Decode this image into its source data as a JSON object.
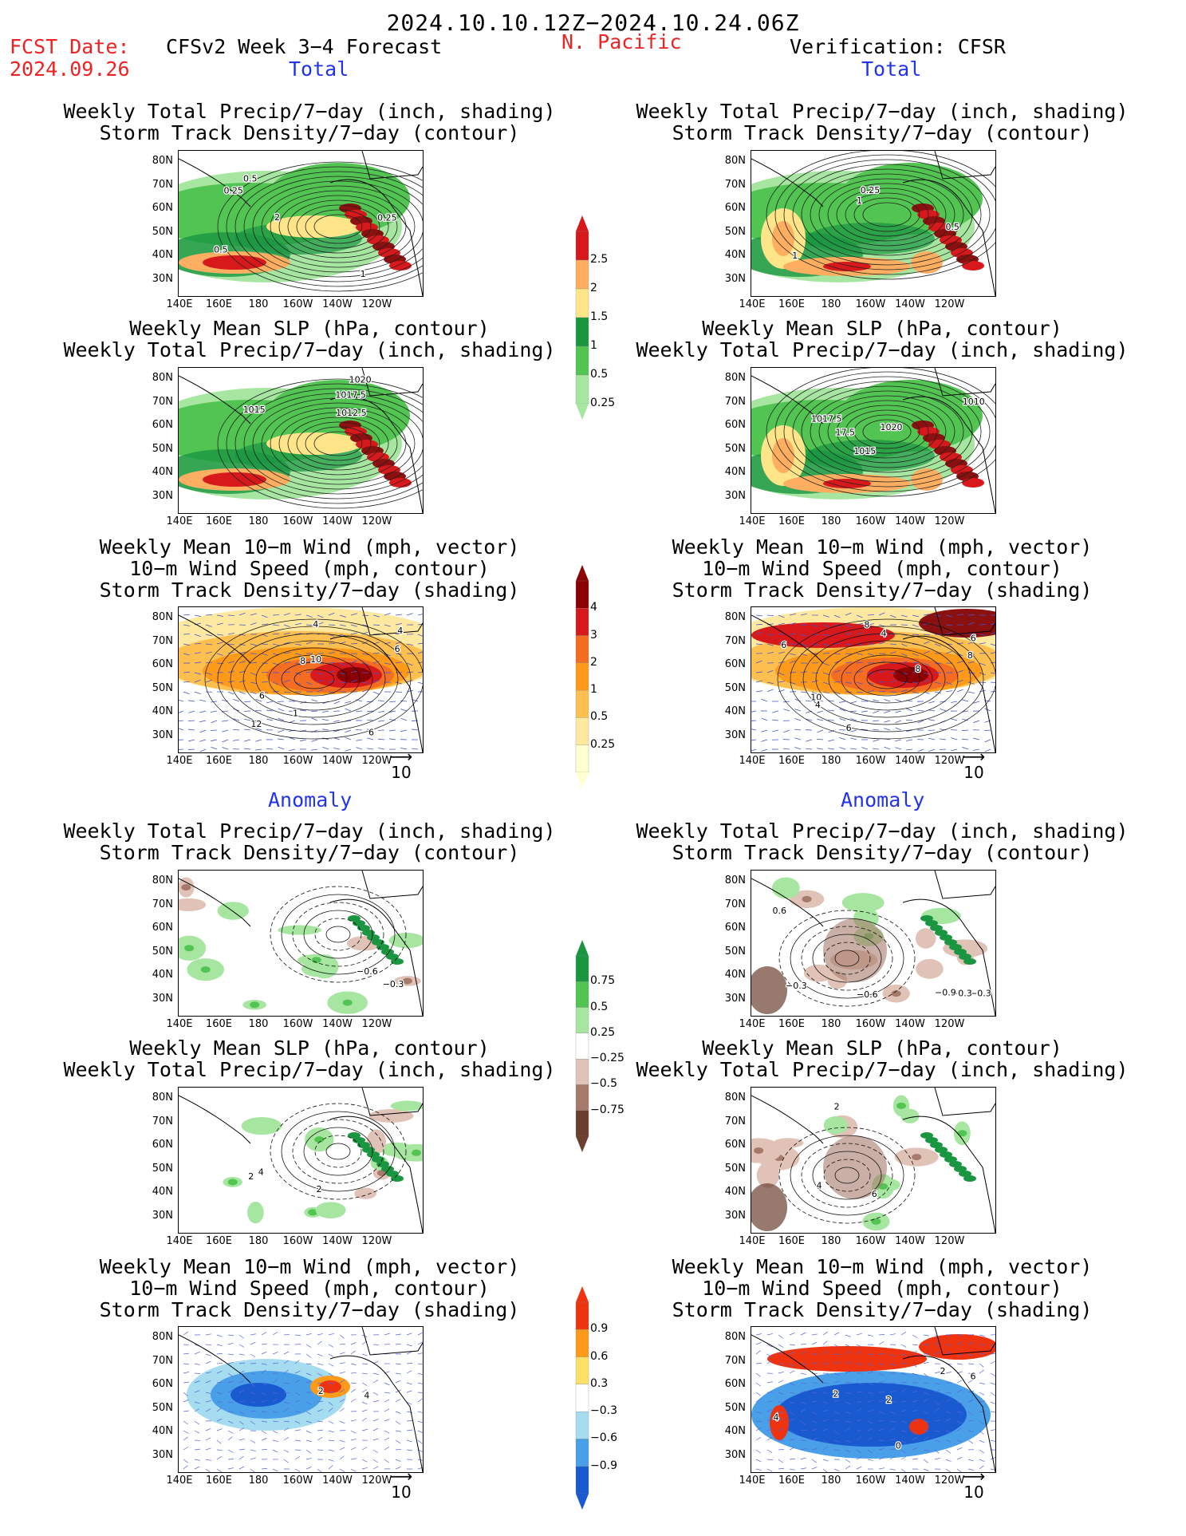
{
  "header": {
    "date_range": "2024.10.10.12Z−2024.10.24.06Z",
    "fcst_label": "FCST Date:",
    "fcst_date": "2024.09.26",
    "model": "CFSv2 Week 3−4 Forecast",
    "region": "N. Pacific",
    "verification": "Verification: CFSR"
  },
  "sections": {
    "total": "Total",
    "anomaly": "Anomaly"
  },
  "titles": {
    "precip_storm_1": "Weekly Total Precip/7−day (inch, shading)",
    "precip_storm_2": "Storm Track Density/7−day (contour)",
    "slp_1": "Weekly Mean SLP (hPa, contour)",
    "slp_2": "Weekly Total Precip/7−day (inch, shading)",
    "wind_1": "Weekly Mean 10−m Wind (mph, vector)",
    "wind_2": "10−m Wind Speed (mph, contour)",
    "wind_3": "Storm Track Density/7−day (shading)"
  },
  "axis": {
    "lat": [
      "80N",
      "70N",
      "60N",
      "50N",
      "40N",
      "30N"
    ],
    "lon": [
      "140E",
      "160E",
      "180",
      "160W",
      "140W",
      "120W"
    ]
  },
  "vector_ref": "10",
  "colorbars": {
    "precip_total": {
      "labels": [
        "2.5",
        "2",
        "1.5",
        "1",
        "0.5",
        "0.25"
      ],
      "colors": [
        "#d7191c",
        "#fdae61",
        "#ffe58a",
        "#1a9641",
        "#52c452",
        "#a6e6a0"
      ]
    },
    "storm_total": {
      "labels": [
        "4",
        "3",
        "2",
        "1",
        "0.5",
        "0.25"
      ],
      "colors": [
        "#8b0000",
        "#d7191c",
        "#f46d22",
        "#fd9a1a",
        "#fdc050",
        "#ffe9a0",
        "#ffffd0"
      ]
    },
    "precip_anom": {
      "labels": [
        "0.75",
        "0.5",
        "0.25",
        "−0.25",
        "−0.5",
        "−0.75"
      ],
      "colors": [
        "#1a9641",
        "#52c452",
        "#a6e6a0",
        "#ffffff",
        "#e0c2b6",
        "#a67a6a",
        "#6b4030"
      ]
    },
    "storm_anom": {
      "labels": [
        "0.9",
        "0.6",
        "0.3",
        "−0.3",
        "−0.6",
        "−0.9"
      ],
      "colors": [
        "#ee3311",
        "#fd9a1a",
        "#ffe066",
        "#ffffff",
        "#a6dcf0",
        "#4aa0e8",
        "#1a5ad0"
      ]
    }
  },
  "panels": {
    "fc_precip": {
      "labels": [
        "0.5",
        "0.25",
        "2",
        "1",
        "0.5",
        "0.25"
      ]
    },
    "ob_precip": {
      "labels": [
        "1",
        "0.5",
        "1",
        "0.25"
      ]
    },
    "fc_slp": {
      "labels": [
        "1020",
        "1015",
        "1012.5",
        "1017.5"
      ]
    },
    "ob_slp": {
      "labels": [
        "1010",
        "1017.5",
        "1015",
        "17.5",
        "1020"
      ]
    },
    "fc_wind": {
      "labels": [
        "12",
        "4",
        "4",
        "10",
        "6",
        "6",
        "8",
        "1",
        "6"
      ]
    },
    "ob_wind": {
      "labels": [
        "8",
        "4",
        "8",
        "10",
        "6",
        "4",
        "6",
        "8",
        "6"
      ]
    },
    "fc_precip_anom": {
      "labels": [
        "−0.6",
        "−0.3"
      ]
    },
    "ob_precip_anom": {
      "labels": [
        "−0.3",
        "−0.3",
        "0.6",
        "−0.3",
        "−0.6",
        "−0.9"
      ]
    },
    "fc_slp_anom": {
      "labels": [
        "4",
        "2",
        "2"
      ]
    },
    "ob_slp_anom": {
      "labels": [
        "6",
        "4",
        "2"
      ]
    },
    "fc_wind_anom": {
      "labels": [
        "4",
        "2"
      ]
    },
    "ob_wind_anom": {
      "labels": [
        "4",
        "2",
        "0",
        "2",
        "2",
        "6"
      ]
    }
  }
}
